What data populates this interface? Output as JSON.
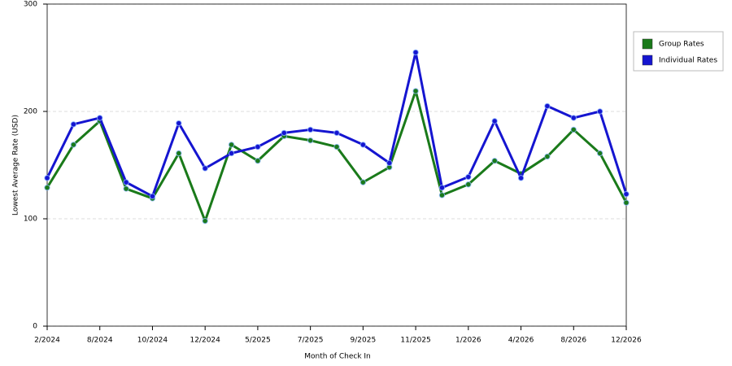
{
  "chart_data": {
    "type": "line",
    "x_label": "Month of Check In",
    "y_label": "Lowest Average Rate (USD)",
    "categories": [
      "2/2024",
      null,
      "8/2024",
      null,
      "10/2024",
      null,
      "12/2024",
      null,
      "5/2025",
      null,
      "7/2025",
      null,
      "9/2025",
      null,
      "11/2025",
      null,
      "1/2026",
      null,
      "4/2026",
      null,
      "8/2026",
      null,
      "12/2026"
    ],
    "series": [
      {
        "name": "Group Rates",
        "color": "#1a7a1a",
        "values": [
          129,
          169,
          191,
          128,
          119,
          161,
          98,
          169,
          154,
          177,
          173,
          167,
          134,
          148,
          219,
          122,
          132,
          154,
          142,
          158,
          183,
          161,
          115
        ]
      },
      {
        "name": "Individual Rates",
        "color": "#1515d0",
        "values": [
          138,
          188,
          194,
          134,
          121,
          189,
          147,
          161,
          167,
          180,
          183,
          180,
          169,
          152,
          255,
          129,
          139,
          191,
          138,
          205,
          194,
          200,
          123
        ]
      }
    ],
    "ylim": [
      0,
      300
    ],
    "yticks": [
      0,
      100,
      200,
      300
    ],
    "grid": true,
    "legend": "right"
  }
}
